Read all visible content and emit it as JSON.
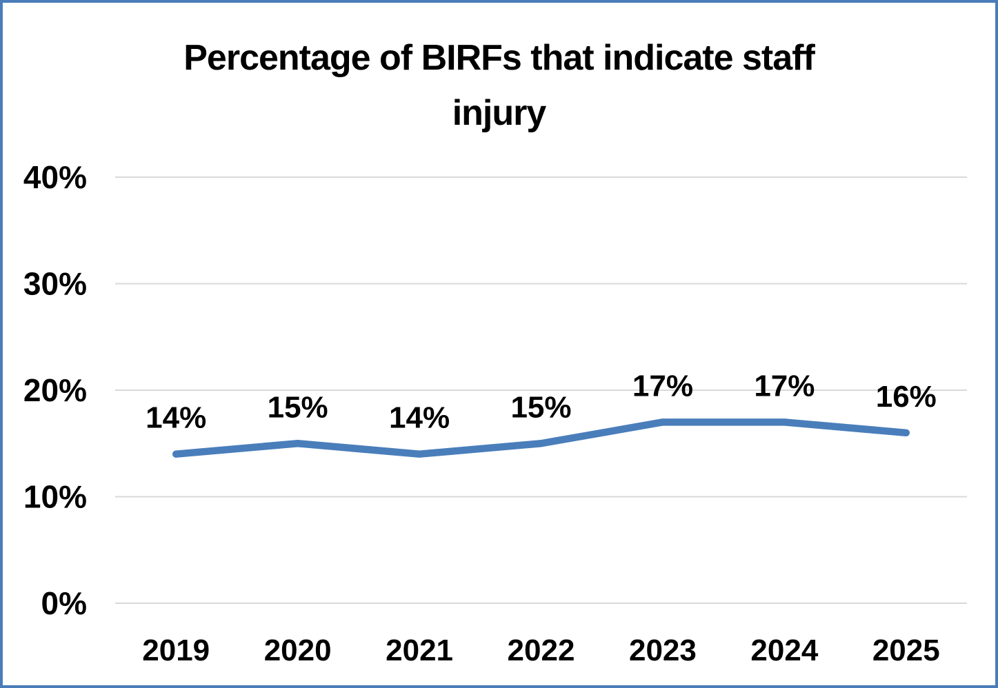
{
  "chart_data": {
    "type": "line",
    "title": "Percentage of BIRFs that indicate staff injury",
    "title_lines": [
      "Percentage of BIRFs that indicate staff",
      "injury"
    ],
    "categories": [
      "2019",
      "2020",
      "2021",
      "2022",
      "2023",
      "2024",
      "2025"
    ],
    "series": [
      {
        "name": "Percentage of BIRFs that indicate staff injury",
        "values": [
          14,
          15,
          14,
          15,
          17,
          17,
          16
        ]
      }
    ],
    "data_labels": [
      "14%",
      "15%",
      "14%",
      "15%",
      "17%",
      "17%",
      "16%"
    ],
    "xlabel": "",
    "ylabel": "",
    "ylim": [
      0,
      40
    ],
    "y_ticks": [
      {
        "value": 0,
        "label": "0%"
      },
      {
        "value": 10,
        "label": "10%"
      },
      {
        "value": 20,
        "label": "20%"
      },
      {
        "value": 30,
        "label": "30%"
      },
      {
        "value": 40,
        "label": "40%"
      }
    ],
    "grid": true,
    "legend": "none",
    "colors": {
      "line": "#4a7ebb",
      "gridline": "#d9d9d9",
      "text": "#000000",
      "frame_border": "#4a7cb9",
      "background": "#ffffff"
    }
  }
}
